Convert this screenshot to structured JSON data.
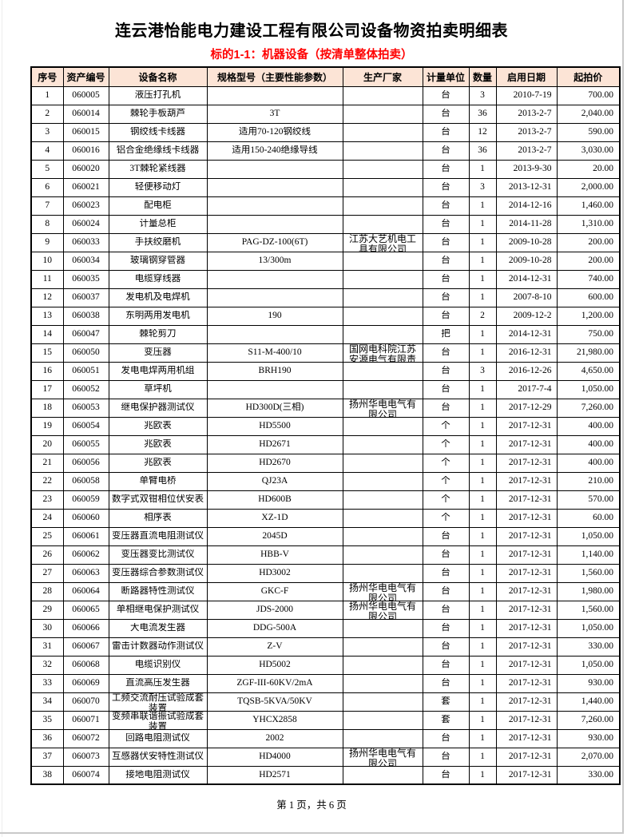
{
  "document": {
    "title": "连云港怡能电力建设工程有限公司设备物资拍卖明细表",
    "subtitle": "标的1-1：机器设备（按清单整体拍卖）",
    "footer": "第 1 页，共 6 页"
  },
  "colors": {
    "subtitle_red": "#ff0000",
    "table_header_bg": "#fce4d6",
    "border_black": "#000000"
  },
  "table": {
    "headers": [
      "序号",
      "资产编号",
      "设备名称",
      "规格型号（主要性能参数）",
      "生产厂家",
      "计量单位",
      "数量",
      "启用日期",
      "起拍价"
    ],
    "rows": [
      {
        "no": "1",
        "asset": "060005",
        "name": "液压打孔机",
        "spec": "",
        "mfr": "",
        "unit": "台",
        "qty": "3",
        "date": "2010-7-19",
        "price": "700.00"
      },
      {
        "no": "2",
        "asset": "060014",
        "name": "棘轮手板葫芦",
        "spec": "3T",
        "mfr": "",
        "unit": "台",
        "qty": "36",
        "date": "2013-2-7",
        "price": "2,040.00"
      },
      {
        "no": "3",
        "asset": "060015",
        "name": "钢绞线卡线器",
        "spec": "适用70-120钢绞线",
        "mfr": "",
        "unit": "台",
        "qty": "12",
        "date": "2013-2-7",
        "price": "590.00"
      },
      {
        "no": "4",
        "asset": "060016",
        "name": "铝合金绝缘线卡线器",
        "spec": "适用150-240绝缘导线",
        "mfr": "",
        "unit": "台",
        "qty": "36",
        "date": "2013-2-7",
        "price": "3,030.00"
      },
      {
        "no": "5",
        "asset": "060020",
        "name": "3T棘轮紧线器",
        "spec": "",
        "mfr": "",
        "unit": "台",
        "qty": "1",
        "date": "2013-9-30",
        "price": "20.00"
      },
      {
        "no": "6",
        "asset": "060021",
        "name": "轻便移动灯",
        "spec": "",
        "mfr": "",
        "unit": "台",
        "qty": "3",
        "date": "2013-12-31",
        "price": "2,000.00"
      },
      {
        "no": "7",
        "asset": "060023",
        "name": "配电柜",
        "spec": "",
        "mfr": "",
        "unit": "台",
        "qty": "1",
        "date": "2014-12-16",
        "price": "1,460.00"
      },
      {
        "no": "8",
        "asset": "060024",
        "name": "计量总柜",
        "spec": "",
        "mfr": "",
        "unit": "台",
        "qty": "1",
        "date": "2014-11-28",
        "price": "1,310.00"
      },
      {
        "no": "9",
        "asset": "060033",
        "name": "手扶绞磨机",
        "spec": "PAG-DZ-100(6T)",
        "mfr": "江苏大艺机电工具有限公司",
        "unit": "台",
        "qty": "1",
        "date": "2009-10-28",
        "price": "200.00"
      },
      {
        "no": "10",
        "asset": "060034",
        "name": "玻璃钢穿管器",
        "spec": "13/300m",
        "mfr": "",
        "unit": "台",
        "qty": "1",
        "date": "2009-10-28",
        "price": "200.00"
      },
      {
        "no": "11",
        "asset": "060035",
        "name": "电缆穿线器",
        "spec": "",
        "mfr": "",
        "unit": "台",
        "qty": "1",
        "date": "2014-12-31",
        "price": "740.00"
      },
      {
        "no": "12",
        "asset": "060037",
        "name": "发电机及电焊机",
        "spec": "",
        "mfr": "",
        "unit": "台",
        "qty": "1",
        "date": "2007-8-10",
        "price": "600.00"
      },
      {
        "no": "13",
        "asset": "060038",
        "name": "东明两用发电机",
        "spec": "190",
        "mfr": "",
        "unit": "台",
        "qty": "2",
        "date": "2009-12-2",
        "price": "1,200.00"
      },
      {
        "no": "14",
        "asset": "060047",
        "name": "棘轮剪刀",
        "spec": "",
        "mfr": "",
        "unit": "把",
        "qty": "1",
        "date": "2014-12-31",
        "price": "750.00"
      },
      {
        "no": "15",
        "asset": "060050",
        "name": "变压器",
        "spec": "S11-M-400/10",
        "mfr": "国网电科院江苏安源电气有限责",
        "unit": "台",
        "qty": "1",
        "date": "2016-12-31",
        "price": "21,980.00"
      },
      {
        "no": "16",
        "asset": "060051",
        "name": "发电电焊两用机组",
        "spec": "BRH190",
        "mfr": "",
        "unit": "台",
        "qty": "3",
        "date": "2016-12-26",
        "price": "4,650.00"
      },
      {
        "no": "17",
        "asset": "060052",
        "name": "草坪机",
        "spec": "",
        "mfr": "",
        "unit": "台",
        "qty": "1",
        "date": "2017-7-4",
        "price": "1,050.00"
      },
      {
        "no": "18",
        "asset": "060053",
        "name": "继电保护器测试仪",
        "spec": "HD300D(三相)",
        "mfr": "扬州华电电气有限公司",
        "unit": "台",
        "qty": "1",
        "date": "2017-12-29",
        "price": "7,260.00"
      },
      {
        "no": "19",
        "asset": "060054",
        "name": "兆欧表",
        "spec": "HD5500",
        "mfr": "",
        "unit": "个",
        "qty": "1",
        "date": "2017-12-31",
        "price": "400.00"
      },
      {
        "no": "20",
        "asset": "060055",
        "name": "兆欧表",
        "spec": "HD2671",
        "mfr": "",
        "unit": "个",
        "qty": "1",
        "date": "2017-12-31",
        "price": "400.00"
      },
      {
        "no": "21",
        "asset": "060056",
        "name": "兆欧表",
        "spec": "HD2670",
        "mfr": "",
        "unit": "个",
        "qty": "1",
        "date": "2017-12-31",
        "price": "400.00"
      },
      {
        "no": "22",
        "asset": "060058",
        "name": "单臂电桥",
        "spec": "QJ23A",
        "mfr": "",
        "unit": "个",
        "qty": "1",
        "date": "2017-12-31",
        "price": "210.00"
      },
      {
        "no": "23",
        "asset": "060059",
        "name": "数字式双钳相位伏安表",
        "spec": "HD600B",
        "mfr": "",
        "unit": "个",
        "qty": "1",
        "date": "2017-12-31",
        "price": "570.00"
      },
      {
        "no": "24",
        "asset": "060060",
        "name": "相序表",
        "spec": "XZ-1D",
        "mfr": "",
        "unit": "个",
        "qty": "1",
        "date": "2017-12-31",
        "price": "60.00"
      },
      {
        "no": "25",
        "asset": "060061",
        "name": "变压器直流电阻测试仪",
        "spec": "2045D",
        "mfr": "",
        "unit": "台",
        "qty": "1",
        "date": "2017-12-31",
        "price": "1,050.00"
      },
      {
        "no": "26",
        "asset": "060062",
        "name": "变压器变比测试仪",
        "spec": "HBB-V",
        "mfr": "",
        "unit": "台",
        "qty": "1",
        "date": "2017-12-31",
        "price": "1,140.00"
      },
      {
        "no": "27",
        "asset": "060063",
        "name": "变压器综合参数测试仪",
        "spec": "HD3002",
        "mfr": "",
        "unit": "台",
        "qty": "1",
        "date": "2017-12-31",
        "price": "1,560.00"
      },
      {
        "no": "28",
        "asset": "060064",
        "name": "断路器特性测试仪",
        "spec": "GKC-F",
        "mfr": "扬州华电电气有限公司",
        "unit": "台",
        "qty": "1",
        "date": "2017-12-31",
        "price": "1,980.00"
      },
      {
        "no": "29",
        "asset": "060065",
        "name": "单相继电保护测试仪",
        "spec": "JDS-2000",
        "mfr": "扬州华电电气有限公司",
        "unit": "台",
        "qty": "1",
        "date": "2017-12-31",
        "price": "1,560.00"
      },
      {
        "no": "30",
        "asset": "060066",
        "name": "大电流发生器",
        "spec": "DDG-500A",
        "mfr": "",
        "unit": "台",
        "qty": "1",
        "date": "2017-12-31",
        "price": "1,050.00"
      },
      {
        "no": "31",
        "asset": "060067",
        "name": "雷击计数器动作测试仪",
        "spec": "Z-V",
        "mfr": "",
        "unit": "台",
        "qty": "1",
        "date": "2017-12-31",
        "price": "330.00"
      },
      {
        "no": "32",
        "asset": "060068",
        "name": "电缆识别仪",
        "spec": "HD5002",
        "mfr": "",
        "unit": "台",
        "qty": "1",
        "date": "2017-12-31",
        "price": "1,050.00"
      },
      {
        "no": "33",
        "asset": "060069",
        "name": "直流高压发生器",
        "spec": "ZGF-III-60KV/2mA",
        "mfr": "",
        "unit": "台",
        "qty": "1",
        "date": "2017-12-31",
        "price": "930.00"
      },
      {
        "no": "34",
        "asset": "060070",
        "name": "工频交流耐压试验成套装置",
        "spec": "TQSB-5KVA/50KV",
        "mfr": "",
        "unit": "套",
        "qty": "1",
        "date": "2017-12-31",
        "price": "1,440.00"
      },
      {
        "no": "35",
        "asset": "060071",
        "name": "变频串联谐振试验成套装置",
        "spec": "YHCX2858",
        "mfr": "",
        "unit": "套",
        "qty": "1",
        "date": "2017-12-31",
        "price": "7,260.00"
      },
      {
        "no": "36",
        "asset": "060072",
        "name": "回路电阻测试仪",
        "spec": "2002",
        "mfr": "",
        "unit": "台",
        "qty": "1",
        "date": "2017-12-31",
        "price": "930.00"
      },
      {
        "no": "37",
        "asset": "060073",
        "name": "互感器伏安特性测试仪",
        "spec": "HD4000",
        "mfr": "扬州华电电气有限公司",
        "unit": "台",
        "qty": "1",
        "date": "2017-12-31",
        "price": "2,070.00"
      },
      {
        "no": "38",
        "asset": "060074",
        "name": "接地电阻测试仪",
        "spec": "HD2571",
        "mfr": "",
        "unit": "台",
        "qty": "1",
        "date": "2017-12-31",
        "price": "330.00"
      }
    ]
  }
}
